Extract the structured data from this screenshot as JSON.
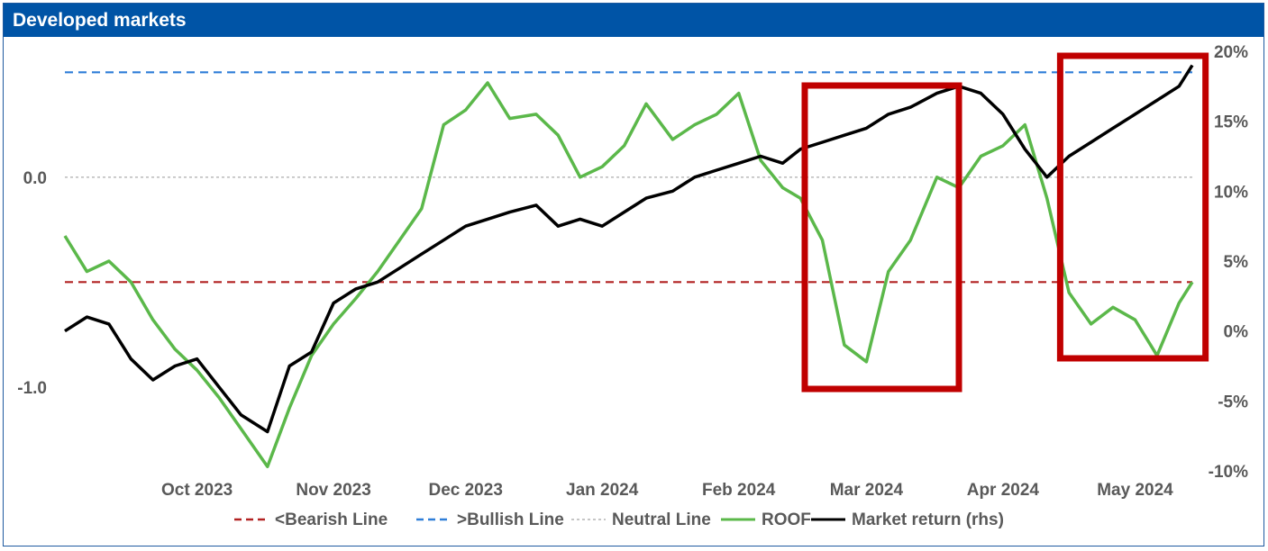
{
  "chart_data": {
    "type": "line",
    "title": "Developed markets",
    "colors": {
      "header_bg": "#0054a6",
      "bearish": "#b22222",
      "bullish": "#2f7ed8",
      "neutral": "#bfbfbf",
      "roof": "#5bb84a",
      "market": "#000000",
      "highlight": "#c00000"
    },
    "x_tick_labels": [
      "Oct 2023",
      "Nov 2023",
      "Dec 2023",
      "Jan 2024",
      "Feb 2024",
      "Mar 2024",
      "Apr 2024",
      "May 2024"
    ],
    "left_axis": {
      "ylim": [
        -1.4,
        0.6
      ],
      "tick_values": [
        0.0,
        -1.0
      ],
      "tick_labels": [
        "0.0",
        "-1.0"
      ]
    },
    "right_axis": {
      "ylim": [
        -10,
        20
      ],
      "tick_values": [
        20,
        15,
        10,
        5,
        0,
        -5,
        -10
      ],
      "tick_labels": [
        "20%",
        "15%",
        "10%",
        "5%",
        "0%",
        "-5%",
        "-10%"
      ]
    },
    "reference_lines": {
      "bearish": -0.5,
      "bullish": 0.5,
      "neutral": 0.0
    },
    "legend": {
      "position": "bottom",
      "items": [
        {
          "key": "bearish",
          "label": "<Bearish Line",
          "style": "dashed"
        },
        {
          "key": "bullish",
          "label": ">Bullish Line",
          "style": "dashed"
        },
        {
          "key": "neutral",
          "label": "Neutral Line",
          "style": "dotted"
        },
        {
          "key": "roof",
          "label": "ROOF",
          "style": "solid"
        },
        {
          "key": "market",
          "label": "Market return (rhs)",
          "style": "solid"
        }
      ]
    },
    "x": [
      "2023-09-15",
      "2023-09-20",
      "2023-09-25",
      "2023-09-30",
      "2023-10-05",
      "2023-10-10",
      "2023-10-15",
      "2023-10-20",
      "2023-10-25",
      "2023-10-31",
      "2023-11-05",
      "2023-11-10",
      "2023-11-15",
      "2023-11-20",
      "2023-11-25",
      "2023-11-30",
      "2023-12-05",
      "2023-12-10",
      "2023-12-15",
      "2023-12-20",
      "2023-12-25",
      "2023-12-31",
      "2024-01-05",
      "2024-01-10",
      "2024-01-15",
      "2024-01-20",
      "2024-01-25",
      "2024-01-31",
      "2024-02-05",
      "2024-02-10",
      "2024-02-15",
      "2024-02-20",
      "2024-02-25",
      "2024-02-29",
      "2024-03-05",
      "2024-03-10",
      "2024-03-15",
      "2024-03-20",
      "2024-03-25",
      "2024-03-31",
      "2024-04-05",
      "2024-04-10",
      "2024-04-15",
      "2024-04-20",
      "2024-04-25",
      "2024-04-30",
      "2024-05-05",
      "2024-05-10",
      "2024-05-15",
      "2024-05-20",
      "2024-05-25",
      "2024-05-28"
    ],
    "series": [
      {
        "name": "ROOF",
        "axis": "left",
        "values": [
          -0.28,
          -0.45,
          -0.4,
          -0.5,
          -0.68,
          -0.82,
          -0.92,
          -1.05,
          -1.2,
          -1.38,
          -1.1,
          -0.85,
          -0.7,
          -0.58,
          -0.45,
          -0.3,
          -0.15,
          0.25,
          0.32,
          0.45,
          0.28,
          0.3,
          0.2,
          0.0,
          0.05,
          0.15,
          0.35,
          0.18,
          0.25,
          0.3,
          0.4,
          0.08,
          -0.05,
          -0.1,
          -0.3,
          -0.8,
          -0.88,
          -0.45,
          -0.3,
          0.0,
          -0.05,
          0.1,
          0.15,
          0.25,
          -0.1,
          -0.55,
          -0.7,
          -0.62,
          -0.68,
          -0.85,
          -0.6,
          -0.5
        ]
      },
      {
        "name": "Market return (rhs)",
        "axis": "right",
        "values": [
          0.0,
          1.0,
          0.5,
          -2.0,
          -3.5,
          -2.5,
          -2.0,
          -4.0,
          -6.0,
          -7.2,
          -2.5,
          -1.5,
          2.0,
          3.0,
          3.5,
          4.5,
          5.5,
          6.5,
          7.5,
          8.0,
          8.5,
          9.0,
          7.5,
          8.0,
          7.5,
          8.5,
          9.5,
          10.0,
          11.0,
          11.5,
          12.0,
          12.5,
          12.0,
          13.0,
          13.5,
          14.0,
          14.5,
          15.5,
          16.0,
          17.0,
          17.5,
          17.0,
          15.5,
          13.0,
          11.0,
          12.5,
          13.5,
          14.5,
          15.5,
          16.5,
          17.5,
          19.0
        ]
      }
    ],
    "highlight_boxes": [
      {
        "label_range": [
          "2024-03-01",
          "2024-04-05"
        ]
      },
      {
        "label_range": [
          "2024-04-28",
          "2024-05-31"
        ]
      }
    ]
  }
}
